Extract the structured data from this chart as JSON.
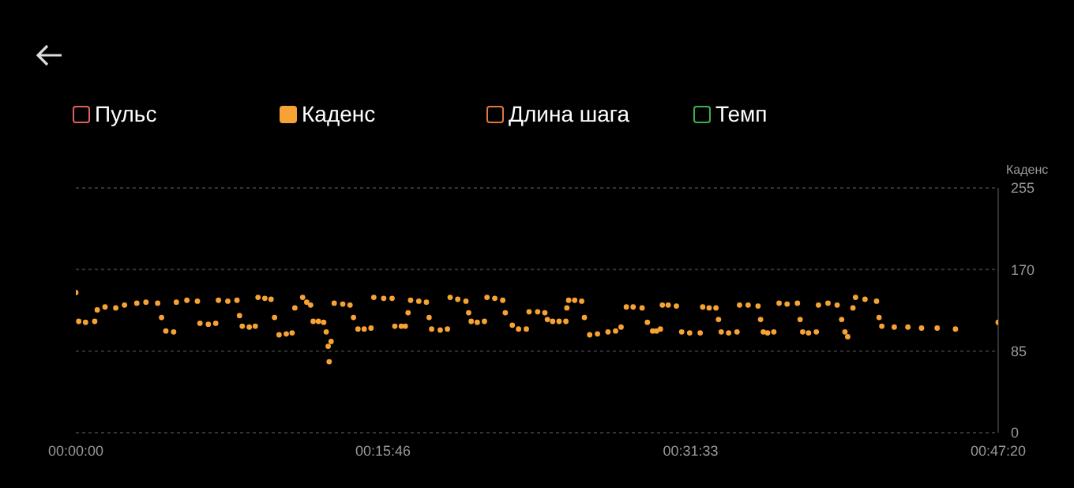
{
  "chart_data": {
    "type": "scatter",
    "ylabel": "Каденс",
    "legend": "top",
    "grid": "y",
    "marker": "circle",
    "xlim": [
      0,
      47.333
    ],
    "xticks": [
      {
        "value": 0,
        "label": "00:00:00"
      },
      {
        "value": 15.767,
        "label": "00:15:46"
      },
      {
        "value": 31.55,
        "label": "00:31:33"
      },
      {
        "value": 47.333,
        "label": "00:47:20"
      }
    ],
    "ylim": [
      0,
      255
    ],
    "yticks": [
      0,
      85,
      170,
      255
    ],
    "series": [
      {
        "name": "Пульс",
        "color": "#e0605a"
      },
      {
        "name": "Каденс",
        "color": "#f7a235",
        "x": [
          0,
          0.15,
          0.5,
          0.97,
          1.1,
          1.5,
          2.05,
          2.5,
          3.13,
          3.6,
          4.2,
          4.4,
          4.62,
          5.02,
          5.16,
          5.7,
          6.24,
          6.37,
          6.8,
          7.18,
          7.32,
          7.8,
          8.27,
          8.4,
          8.54,
          8.9,
          9.21,
          9.35,
          9.7,
          10.02,
          10.2,
          10.43,
          10.8,
          11.1,
          11.24,
          11.64,
          11.85,
          12.05,
          12.18,
          12.45,
          12.72,
          12.85,
          12.95,
          13.0,
          13.1,
          13.26,
          13.7,
          14.07,
          14.25,
          14.48,
          14.8,
          15.15,
          15.29,
          15.8,
          16.23,
          16.37,
          16.7,
          16.91,
          17.05,
          17.18,
          17.6,
          17.99,
          18.13,
          18.26,
          18.7,
          19.07,
          19.21,
          19.6,
          20.02,
          20.16,
          20.29,
          20.6,
          20.97,
          21.1,
          21.5,
          21.91,
          22.04,
          22.4,
          22.72,
          23.12,
          23.26,
          23.7,
          24.07,
          24.2,
          24.47,
          24.8,
          25.15,
          25.2,
          25.29,
          25.6,
          25.96,
          26.1,
          26.37,
          26.77,
          27.31,
          27.7,
          27.98,
          28.25,
          28.6,
          29.06,
          29.33,
          29.6,
          29.8,
          30.0,
          30.1,
          30.4,
          30.82,
          31.09,
          31.5,
          32.04,
          32.17,
          32.5,
          32.85,
          32.98,
          33.12,
          33.5,
          33.93,
          34.06,
          34.5,
          35.01,
          35.14,
          35.28,
          35.5,
          35.82,
          36.09,
          36.5,
          37.03,
          37.17,
          37.3,
          37.6,
          38.0,
          38.11,
          38.6,
          39.07,
          39.3,
          39.47,
          39.61,
          39.88,
          40.01,
          40.5,
          41.09,
          41.22,
          41.36,
          42,
          42.7,
          43.4,
          44.2,
          45.14,
          47.333
        ],
        "values": [
          146,
          116,
          115,
          116,
          128,
          131,
          130,
          133,
          135,
          136,
          135,
          120,
          106,
          105,
          136,
          138,
          137,
          114,
          113,
          114,
          138,
          137,
          138,
          122,
          111,
          110,
          111,
          141,
          140,
          139,
          120,
          102,
          103,
          104,
          130,
          141,
          136,
          133,
          116,
          116,
          115,
          105,
          90,
          74,
          95,
          135,
          134,
          133,
          120,
          108,
          108,
          109,
          141,
          140,
          140,
          111,
          111,
          111,
          125,
          138,
          137,
          136,
          120,
          108,
          107,
          108,
          141,
          139,
          137,
          125,
          116,
          115,
          116,
          141,
          140,
          138,
          125,
          112,
          108,
          108,
          126,
          126,
          125,
          118,
          116,
          116,
          116,
          130,
          138,
          138,
          137,
          120,
          102,
          103,
          105,
          106,
          110,
          131,
          131,
          130,
          115,
          106,
          106,
          108,
          133,
          133,
          132,
          105,
          104,
          104,
          131,
          130,
          130,
          118,
          105,
          104,
          105,
          133,
          133,
          132,
          118,
          105,
          104,
          105,
          135,
          134,
          135,
          118,
          105,
          104,
          105,
          133,
          135,
          133,
          118,
          105,
          100,
          130,
          141,
          139,
          137,
          120,
          111,
          110,
          110,
          109,
          109,
          108,
          115
        ]
      },
      {
        "name": "Длина шага",
        "color": "#e07a3a"
      },
      {
        "name": "Темп",
        "color": "#3cb050"
      }
    ]
  }
}
